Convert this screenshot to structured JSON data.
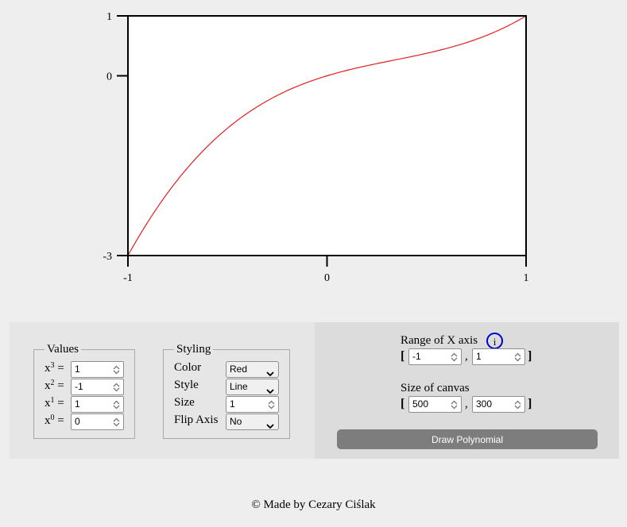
{
  "chart_data": {
    "type": "line",
    "function": "x^3 - x^2 + x",
    "coefficients": {
      "x3": 1,
      "x2": -1,
      "x1": 1,
      "x0": 0
    },
    "xlim": [
      -1,
      1
    ],
    "ylim": [
      -3,
      1
    ],
    "x_ticks": [
      "-1",
      "0",
      "1"
    ],
    "y_ticks": [
      "1",
      "0",
      "-3"
    ],
    "line_color": "#e02020",
    "grid": false
  },
  "values": {
    "legend": "Values",
    "x3": "1",
    "x2": "-1",
    "x1": "1",
    "x0": "0"
  },
  "styling": {
    "legend": "Styling",
    "color_label": "Color",
    "color_value": "Red",
    "style_label": "Style",
    "style_value": "Line",
    "size_label": "Size",
    "size_value": "1",
    "flip_label": "Flip Axis",
    "flip_value": "No"
  },
  "range": {
    "label": "Range of X axis",
    "info_symbol": "i",
    "open_bracket": "[",
    "close_bracket": "]",
    "separator": ",",
    "min": "-1",
    "max": "1"
  },
  "canvas_size": {
    "label": "Size of canvas",
    "width": "500",
    "height": "300"
  },
  "draw_button": "Draw Polynomial",
  "footer": "© Made by Cezary Ciślak",
  "icons": {
    "spinner": "spinner-icon",
    "dropdown": "chevron-down-icon",
    "info": "info-icon"
  }
}
